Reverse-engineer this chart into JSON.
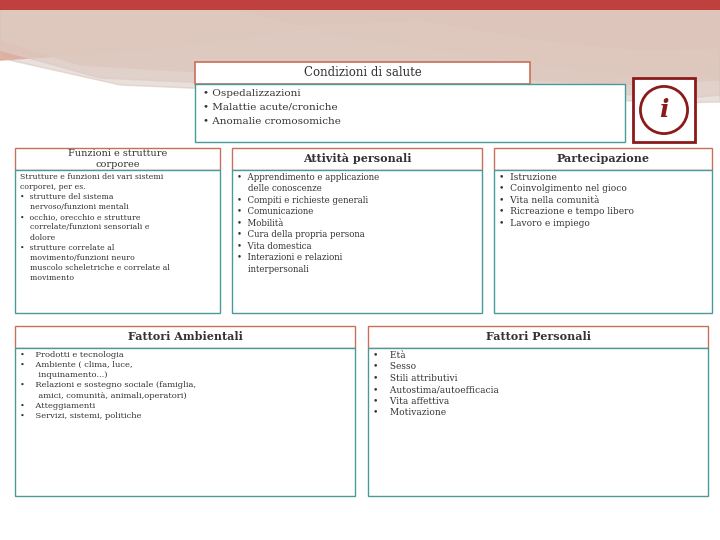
{
  "title": "Condizioni di salute",
  "condizioni_items": "• Ospedalizzazioni\n• Malattie acute/croniche\n• Anomalie cromosomiche",
  "col1_title": "Funzioni e strutture\ncorporee",
  "col1_body": "Strutture e funzioni dei vari sistemi\ncorporei, per es.\n•  strutture del sistema\n    nervoso/funzioni mentali\n•  occhio, orecchio e strutture\n    correlate/funzioni sensoriali e\n    dolore\n•  strutture correlate al\n    movimento/funzioni neuro\n    muscolo scheletriche e correlate al\n    movimento",
  "col2_title": "Attività personali",
  "col2_body": "•  Apprendimento e applicazione\n    delle conoscenze\n•  Compiti e richieste generali\n•  Comunicazione\n•  Mobilità\n•  Cura della propria persona\n•  Vita domestica\n•  Interazioni e relazioni\n    interpersonali",
  "col3_title": "Partecipazione",
  "col3_body": "•  Istruzione\n•  Coinvolgimento nel gioco\n•  Vita nella comunità\n•  Ricreazione e tempo libero\n•  Lavoro e impiego",
  "bottom1_title": "Fattori Ambientali",
  "bottom1_body": "•    Prodotti e tecnologia\n•    Ambiente ( clima, luce,\n       inquinamento...)\n•    Relazioni e sostegno sociale (famiglia,\n       amici, comunità, animali,operatori)\n•    Atteggiamenti\n•    Servizi, sistemi, politiche",
  "bottom2_title": "Fattori Personali",
  "bottom2_body": "•    Età\n•    Sesso\n•    Stili attributivi\n•    Autostima/autoefficacia\n•    Vita affettiva\n•    Motivazione",
  "border_red": "#c8705a",
  "border_teal": "#4a9a9a",
  "text_color": "#333333",
  "bg_color": "#ffffff"
}
